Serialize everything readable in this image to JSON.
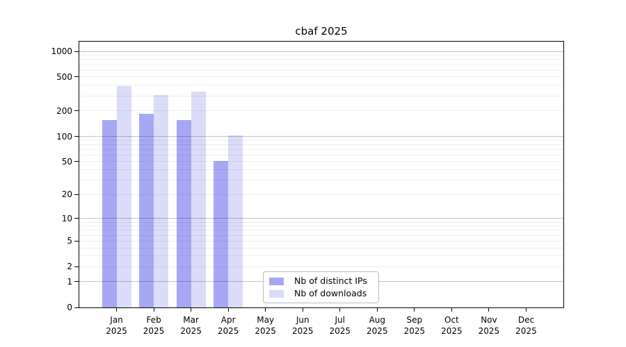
{
  "chart_data": {
    "type": "bar",
    "title": "cbaf 2025",
    "y_scale": "log1p",
    "y_ticks": [
      0,
      1,
      2,
      5,
      10,
      20,
      50,
      100,
      200,
      500,
      1000
    ],
    "y_top": 1300,
    "y_grid": {
      "major": [
        1,
        10,
        100,
        1000
      ],
      "minor_decades": [
        1,
        10,
        100
      ]
    },
    "grid": true,
    "legend_position": "lower center",
    "categories": [
      "Jan 2025",
      "Feb 2025",
      "Mar 2025",
      "Apr 2025",
      "May 2025",
      "Jun 2025",
      "Jul 2025",
      "Aug 2025",
      "Sep 2025",
      "Oct 2025",
      "Nov 2025",
      "Dec 2025"
    ],
    "months": [
      "Jan",
      "Feb",
      "Mar",
      "Apr",
      "May",
      "Jun",
      "Jul",
      "Aug",
      "Sep",
      "Oct",
      "Nov",
      "Dec"
    ],
    "year": "2025",
    "series": [
      {
        "name": "Nb of distinct IPs",
        "color": "#a6a8f3",
        "values": [
          155,
          183,
          155,
          51,
          null,
          null,
          null,
          null,
          null,
          null,
          null,
          null
        ]
      },
      {
        "name": "Nb of downloads",
        "color": "#dadcf9",
        "values": [
          390,
          305,
          340,
          103,
          null,
          null,
          null,
          null,
          null,
          null,
          null,
          null
        ]
      }
    ]
  },
  "colors": {
    "axis": "#000000",
    "grid_major": "rgba(0,0,0,0.24)",
    "grid_minor": "rgba(0,0,0,0.065)",
    "background": "#ffffff",
    "legend_border": "#b9b9b9"
  }
}
